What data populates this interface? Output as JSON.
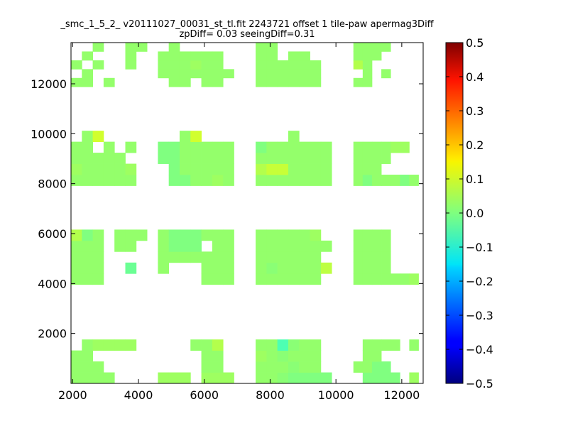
{
  "chart_data": {
    "type": "heatmap",
    "title": "_smc_1_5_2_ v20111027_00031_st_tl.fit 2243721 offset 1 tile-paw apermag3Diff",
    "subtitle": "zpDiff= 0.03 seeingDiff=0.31",
    "xlabel": "",
    "ylabel": "",
    "xlim": [
      1950,
      12650
    ],
    "ylim": [
      0,
      13650
    ],
    "xticks": [
      2000,
      4000,
      6000,
      8000,
      10000,
      12000
    ],
    "xtick_labels": [
      "2000",
      "4000",
      "6000",
      "8000",
      "10000",
      "12000"
    ],
    "yticks": [
      2000,
      4000,
      6000,
      8000,
      10000,
      12000
    ],
    "ytick_labels": [
      "2000",
      "4000",
      "6000",
      "8000",
      "10000",
      "12000"
    ],
    "colorbar": {
      "colormap": "jet",
      "vmin": -0.5,
      "vmax": 0.5,
      "ticks": [
        0.5,
        0.4,
        0.3,
        0.2,
        0.1,
        0.0,
        -0.1,
        -0.2,
        -0.3,
        -0.4,
        -0.5
      ],
      "tick_labels": [
        "0.5",
        "0.4",
        "0.3",
        "0.2",
        "0.1",
        "0.0",
        "−0.1",
        "−0.2",
        "−0.3",
        "−0.4",
        "−0.5"
      ]
    },
    "cell_size_data_units": {
      "dx": 330,
      "dy": 440
    },
    "x_origin": 1950,
    "y_origin": 0,
    "grid": false,
    "regions": [
      {
        "x0": 1950,
        "x1": 4260,
        "y0": 0,
        "y1": 1760,
        "rows": [
          [
            0.02,
            0.02,
            0.02,
            0.02,
            null,
            null,
            null
          ],
          [
            0.02,
            0.02,
            0.02,
            null,
            null,
            null,
            null
          ],
          [
            0.02,
            0.02,
            null,
            null,
            null,
            null,
            null
          ],
          [
            null,
            0.02,
            0.03,
            0.03,
            0.03,
            0.03,
            null
          ]
        ]
      },
      {
        "x0": 4590,
        "x1": 6900,
        "y0": 0,
        "y1": 1760,
        "rows": [
          [
            0.03,
            0.03,
            0.03,
            null,
            0.03,
            0.03,
            0.03
          ],
          [
            null,
            null,
            null,
            null,
            0.02,
            0.02,
            null
          ],
          [
            null,
            null,
            null,
            null,
            0.02,
            0.02,
            null
          ],
          [
            null,
            null,
            null,
            0.02,
            0.02,
            0.05,
            null
          ]
        ]
      },
      {
        "x0": 7560,
        "x1": 9870,
        "y0": 0,
        "y1": 1760,
        "rows": [
          [
            0.02,
            0.02,
            0.01,
            0.0,
            0.0,
            0.0,
            0.0
          ],
          [
            0.02,
            0.02,
            0.02,
            0.01,
            0.02,
            0.02,
            null
          ],
          [
            0.03,
            0.02,
            0.01,
            0.02,
            0.02,
            0.02,
            null
          ],
          [
            0.02,
            0.02,
            -0.05,
            0.01,
            0.02,
            0.02,
            null
          ]
        ]
      },
      {
        "x0": 10530,
        "x1": 12510,
        "y0": 0,
        "y1": 1760,
        "rows": [
          [
            null,
            0.0,
            0.0,
            0.0,
            0.0,
            null,
            0.03
          ],
          [
            0.02,
            0.02,
            0.0,
            0.0,
            null,
            null,
            null
          ],
          [
            null,
            0.02,
            0.02,
            null,
            null,
            null,
            null
          ],
          [
            null,
            0.02,
            0.02,
            0.02,
            0.02,
            null,
            0.02
          ]
        ]
      },
      {
        "x0": 1950,
        "x1": 4260,
        "y0": 3960,
        "y1": 6160,
        "rows": [
          [
            0.02,
            0.02,
            0.02,
            null,
            null,
            null,
            null
          ],
          [
            0.02,
            0.02,
            0.02,
            null,
            null,
            -0.02,
            null
          ],
          [
            0.02,
            0.02,
            0.02,
            null,
            null,
            null,
            null
          ],
          [
            0.02,
            0.02,
            0.02,
            null,
            0.02,
            0.02,
            null
          ],
          [
            0.05,
            0.0,
            0.02,
            null,
            0.02,
            0.02,
            0.02
          ]
        ]
      },
      {
        "x0": 4590,
        "x1": 6900,
        "y0": 3960,
        "y1": 6160,
        "rows": [
          [
            null,
            null,
            null,
            null,
            0.02,
            0.02,
            0.02
          ],
          [
            0.02,
            null,
            null,
            null,
            0.02,
            0.02,
            0.02
          ],
          [
            0.02,
            0.02,
            0.02,
            0.02,
            0.02,
            0.02,
            0.02
          ],
          [
            0.02,
            0.0,
            0.0,
            0.0,
            null,
            0.02,
            0.02
          ],
          [
            0.02,
            0.0,
            0.0,
            0.0,
            0.02,
            0.02,
            0.02
          ]
        ]
      },
      {
        "x0": 7560,
        "x1": 9870,
        "y0": 3960,
        "y1": 6160,
        "rows": [
          [
            0.02,
            0.02,
            0.02,
            0.02,
            0.02,
            0.02,
            null
          ],
          [
            0.02,
            0.01,
            0.02,
            0.02,
            0.02,
            0.02,
            0.06
          ],
          [
            0.02,
            0.02,
            0.02,
            0.02,
            0.02,
            0.02,
            null
          ],
          [
            0.02,
            0.02,
            0.02,
            0.02,
            0.02,
            0.02,
            0.02
          ],
          [
            0.02,
            0.02,
            0.02,
            0.02,
            0.02,
            0.03,
            null
          ]
        ]
      },
      {
        "x0": 10530,
        "x1": 12510,
        "y0": 3960,
        "y1": 6160,
        "rows": [
          [
            0.02,
            0.02,
            0.02,
            0.02,
            0.02,
            0.02,
            0.03
          ],
          [
            0.02,
            0.02,
            0.02,
            0.02,
            null,
            null,
            null
          ],
          [
            0.02,
            0.02,
            0.02,
            0.02,
            null,
            null,
            null
          ],
          [
            0.02,
            0.02,
            0.02,
            0.02,
            null,
            null,
            null
          ],
          [
            0.02,
            0.02,
            0.02,
            0.02,
            null,
            null,
            null
          ]
        ]
      },
      {
        "x0": 1950,
        "x1": 4260,
        "y0": 7920,
        "y1": 10120,
        "rows": [
          [
            0.02,
            0.02,
            0.02,
            0.02,
            0.02,
            0.02,
            null
          ],
          [
            0.03,
            0.02,
            0.02,
            0.02,
            0.02,
            0.03,
            null
          ],
          [
            0.02,
            0.02,
            0.02,
            0.02,
            0.02,
            null,
            null
          ],
          [
            0.02,
            0.02,
            null,
            0.02,
            null,
            0.02,
            null
          ],
          [
            null,
            0.02,
            0.08,
            null,
            null,
            null,
            null
          ]
        ]
      },
      {
        "x0": 4590,
        "x1": 6900,
        "y0": 7920,
        "y1": 10120,
        "rows": [
          [
            null,
            0.0,
            0.0,
            0.02,
            0.02,
            0.03,
            0.02
          ],
          [
            null,
            0.0,
            0.02,
            0.02,
            0.02,
            0.02,
            0.02
          ],
          [
            0.0,
            0.0,
            0.02,
            0.02,
            0.02,
            0.02,
            0.02
          ],
          [
            0.0,
            0.0,
            0.02,
            0.02,
            0.02,
            0.02,
            0.02
          ],
          [
            null,
            null,
            0.02,
            0.08,
            null,
            null,
            null
          ]
        ]
      },
      {
        "x0": 7560,
        "x1": 9870,
        "y0": 7920,
        "y1": 10120,
        "rows": [
          [
            0.02,
            0.02,
            0.02,
            0.02,
            0.02,
            0.02,
            0.02
          ],
          [
            0.05,
            0.07,
            0.07,
            0.02,
            0.02,
            0.02,
            0.02
          ],
          [
            0.02,
            0.02,
            0.02,
            0.02,
            0.02,
            0.02,
            0.02
          ],
          [
            0.0,
            0.02,
            0.02,
            0.02,
            0.02,
            0.02,
            0.02
          ],
          [
            null,
            null,
            null,
            0.02,
            null,
            null,
            null
          ]
        ]
      },
      {
        "x0": 10530,
        "x1": 12510,
        "y0": 7920,
        "y1": 10120,
        "rows": [
          [
            0.02,
            0.0,
            0.02,
            0.02,
            0.02,
            0.0,
            0.02
          ],
          [
            0.02,
            0.02,
            0.02,
            null,
            null,
            null,
            null
          ],
          [
            0.02,
            0.02,
            0.02,
            0.02,
            null,
            null,
            null
          ],
          [
            0.02,
            0.02,
            0.02,
            0.02,
            0.03,
            0.03,
            null
          ],
          [
            null,
            null,
            null,
            null,
            null,
            null,
            null
          ]
        ]
      },
      {
        "x0": 1950,
        "x1": 4260,
        "y0": 11880,
        "y1": 13650,
        "rows": [
          [
            0.02,
            0.02,
            null,
            0.02,
            null,
            null,
            null
          ],
          [
            null,
            0.02,
            null,
            null,
            null,
            null,
            null
          ],
          [
            0.02,
            null,
            0.02,
            null,
            null,
            0.02,
            null
          ],
          [
            null,
            0.02,
            null,
            null,
            null,
            0.02,
            null
          ],
          [
            null,
            null,
            0.02,
            null,
            null,
            0.02,
            0.02
          ]
        ]
      },
      {
        "x0": 4590,
        "x1": 6900,
        "y0": 11880,
        "y1": 13650,
        "rows": [
          [
            null,
            0.02,
            0.02,
            null,
            0.02,
            0.02,
            null
          ],
          [
            0.02,
            0.02,
            0.02,
            0.02,
            0.02,
            0.02,
            0.02
          ],
          [
            0.02,
            0.02,
            0.02,
            0.03,
            0.02,
            0.02,
            null
          ],
          [
            0.02,
            0.02,
            0.02,
            0.02,
            0.02,
            0.02,
            null
          ],
          [
            null,
            0.02,
            null,
            null,
            null,
            null,
            null
          ]
        ]
      },
      {
        "x0": 7560,
        "x1": 9870,
        "y0": 11880,
        "y1": 13650,
        "rows": [
          [
            0.02,
            0.02,
            0.02,
            0.02,
            0.02,
            0.02,
            null
          ],
          [
            0.02,
            0.02,
            0.02,
            0.02,
            0.02,
            0.02,
            null
          ],
          [
            0.02,
            0.02,
            0.02,
            0.02,
            0.02,
            0.02,
            null
          ],
          [
            0.02,
            0.02,
            null,
            0.02,
            0.02,
            null,
            null
          ],
          [
            0.02,
            0.02,
            null,
            null,
            null,
            null,
            null
          ]
        ]
      },
      {
        "x0": 10530,
        "x1": 12510,
        "y0": 11880,
        "y1": 13650,
        "rows": [
          [
            0.02,
            0.02,
            null,
            null,
            null,
            null,
            null
          ],
          [
            null,
            0.02,
            null,
            0.02,
            null,
            null,
            null
          ],
          [
            0.05,
            0.02,
            null,
            null,
            null,
            null,
            null
          ],
          [
            0.02,
            0.02,
            0.02,
            null,
            null,
            null,
            null
          ],
          [
            0.02,
            0.02,
            0.02,
            0.02,
            null,
            null,
            null
          ]
        ]
      }
    ]
  }
}
